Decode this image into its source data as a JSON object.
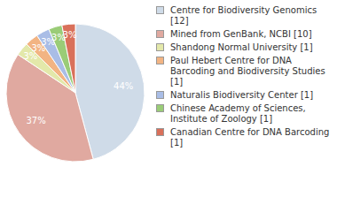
{
  "chart_data": {
    "type": "pie",
    "categories": [
      "Centre for Biodiversity Genomics [12]",
      "Mined from GenBank, NCBI [10]",
      "Shandong Normal University [1]",
      "Paul Hebert Centre for DNA Barcoding and Biodiversity Studies [1]",
      "Naturalis Biodiversity Center [1]",
      "Chinese Academy of Sciences, Institute of Zoology [1]",
      "Canadian Centre for DNA Barcoding [1]"
    ],
    "values": [
      44,
      37,
      3,
      3,
      3,
      3,
      3
    ],
    "value_labels": [
      "44%",
      "37%",
      "3%",
      "3%",
      "3%",
      "3%",
      "3%"
    ],
    "colors": [
      "#cfdbe8",
      "#e0a9a0",
      "#e3e8aa",
      "#f2b483",
      "#a9bde6",
      "#9acc77",
      "#d9705a"
    ],
    "data_labels": true
  }
}
